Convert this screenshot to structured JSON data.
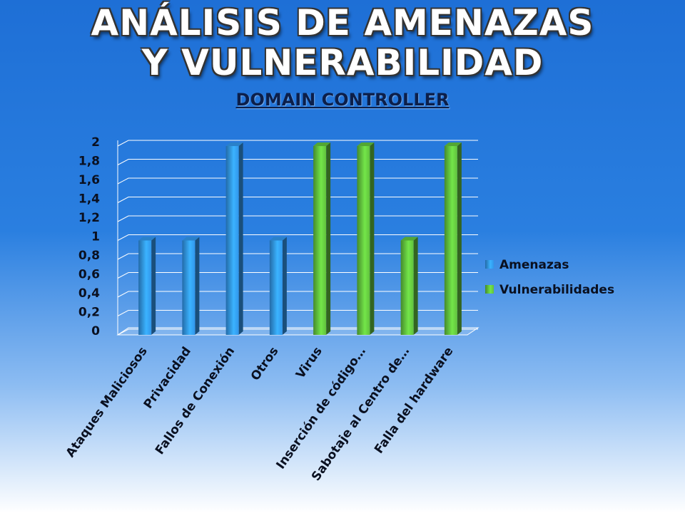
{
  "chart_data": {
    "type": "bar",
    "title": "ANÁLISIS DE AMENAZAS Y VULNERABILIDAD",
    "subtitle": "DOMAIN CONTROLLER",
    "categories": [
      "Ataques Maliciosos",
      "Privacidad",
      "Fallos de Conexión",
      "Otros",
      "Virus",
      "Inserción de código…",
      "Sabotaje al Centro de…",
      "Falla del hardware"
    ],
    "series": [
      {
        "name": "Amenazas",
        "color": "#2f8fe0",
        "values": [
          1,
          1,
          2,
          1,
          null,
          null,
          null,
          null
        ]
      },
      {
        "name": "Vulnerabilidades",
        "color": "#5cb83a",
        "values": [
          null,
          null,
          null,
          null,
          2,
          2,
          1,
          2
        ]
      }
    ],
    "ylim": [
      0,
      2
    ],
    "yticks": [
      0,
      {
        "value": 0.2,
        "label": "0,2"
      },
      {
        "value": 0.4,
        "label": "0,4"
      },
      {
        "value": 0.6,
        "label": "0,6"
      },
      {
        "value": 0.8,
        "label": "0,8"
      },
      1,
      {
        "value": 1.2,
        "label": "1,2"
      },
      {
        "value": 1.4,
        "label": "1,4"
      },
      {
        "value": 1.6,
        "label": "1,6"
      },
      {
        "value": 1.8,
        "label": "1,8"
      },
      2
    ],
    "grid": true,
    "legend": "right"
  }
}
